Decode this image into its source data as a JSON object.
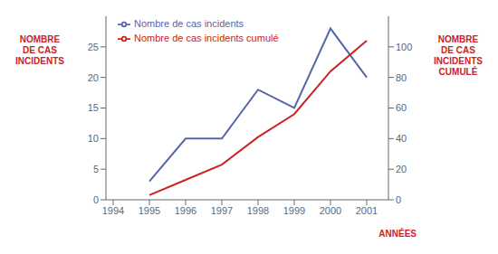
{
  "chart_data": {
    "type": "line",
    "x": [
      1995,
      1996,
      1997,
      1998,
      1999,
      2000,
      2001
    ],
    "x_label": "ANNÉES",
    "y_label": "NOMBRE\nDE CAS\nINCIDENTS",
    "y2_label": "NOMBRE\nDE CAS\nINCIDENTS\nCUMULÉ",
    "series": [
      {
        "name": "Nombre de cas incidents",
        "color": "#5566aa",
        "values": [
          3,
          10,
          10,
          18,
          15,
          28,
          20
        ]
      },
      {
        "name": "Nombre de cas incidents cumulé",
        "color": "#cc2222",
        "values": [
          3,
          13,
          23,
          41,
          56,
          84,
          104
        ],
        "axis": "y2"
      }
    ],
    "xlim": [
      1993.8,
      2001.6
    ],
    "xticks": [
      1994,
      1995,
      1996,
      1997,
      1998,
      1999,
      2000,
      2001
    ],
    "ylim": [
      0,
      30
    ],
    "yticks": [
      0,
      5,
      10,
      15,
      20,
      25
    ],
    "y2lim": [
      0,
      120
    ],
    "y2ticks": [
      0,
      20,
      40,
      60,
      80,
      100
    ],
    "grid": false,
    "legend": "upper left"
  }
}
